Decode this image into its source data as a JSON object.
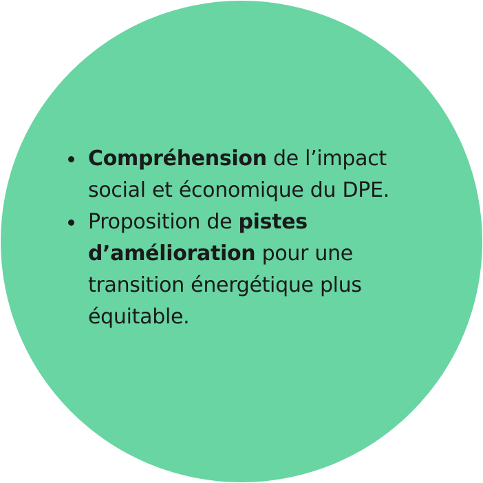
{
  "colors": {
    "circle_fill": "#68d5a3",
    "text": "#1a1a1a",
    "background": "#ffffff"
  },
  "bullets": [
    {
      "bold": "Compréhension",
      "text": " de l’impact social et économique du DPE."
    },
    {
      "lead": "Proposition de ",
      "bold": "pistes d’amélioration",
      "text": " pour une transition énergétique plus équitable."
    }
  ]
}
